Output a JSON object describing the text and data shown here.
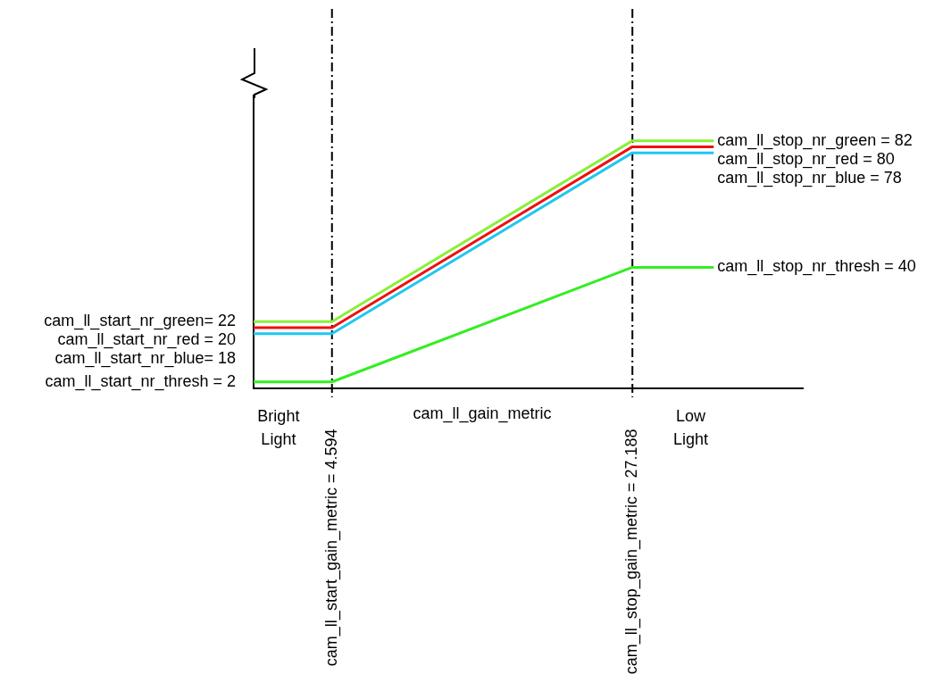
{
  "chart_data": {
    "type": "line",
    "xlabel": "cam_ll_gain_metric",
    "xlim": [
      -1.3,
      40
    ],
    "ylim": [
      0,
      97
    ],
    "xticks": [
      {
        "value": 4.594,
        "label": "cam_ll_start_gain_metric = 4.594"
      },
      {
        "value": 27.188,
        "label": "cam_ll_stop_gain_metric = 27.188"
      }
    ],
    "tick_labels": "x",
    "grid": false,
    "legend": false,
    "marker": "none",
    "line_style": "solid",
    "series": [
      {
        "color": "#88f03a",
        "x": [
          -1.3,
          4.594,
          27.188,
          33.3
        ],
        "values": [
          22,
          22,
          82,
          82
        ],
        "value_labels": [
          "cam_ll_start_nr_green= 22",
          null,
          null,
          "cam_ll_stop_nr_green = 82"
        ]
      },
      {
        "color": "#f01010",
        "x": [
          -1.3,
          4.594,
          27.188,
          33.3
        ],
        "values": [
          20,
          20,
          80,
          80
        ],
        "value_labels": [
          "cam_ll_start_nr_red = 20",
          null,
          null,
          "cam_ll_stop_nr_red = 80"
        ]
      },
      {
        "color": "#1ec8f0",
        "x": [
          -1.3,
          4.594,
          27.188,
          33.3
        ],
        "values": [
          18,
          18,
          78,
          78
        ],
        "value_labels": [
          "cam_ll_start_nr_blue= 18",
          null,
          null,
          "cam_ll_stop_nr_blue = 78"
        ]
      },
      {
        "color": "#33ee22",
        "x": [
          -1.3,
          4.594,
          27.188,
          33.3
        ],
        "values": [
          2,
          2,
          40,
          40
        ],
        "value_labels": [
          "cam_ll_start_nr_thresh = 2",
          null,
          null,
          "cam_ll_stop_nr_thresh = 40"
        ]
      }
    ],
    "ref_lines": [
      {
        "axis": "x",
        "value": 4.594,
        "color": "#000000",
        "line_style": "dashed"
      },
      {
        "axis": "x",
        "value": 27.188,
        "color": "#000000",
        "line_style": "dashed"
      }
    ],
    "annotations": [
      "Bright Light",
      "Low Light"
    ]
  }
}
